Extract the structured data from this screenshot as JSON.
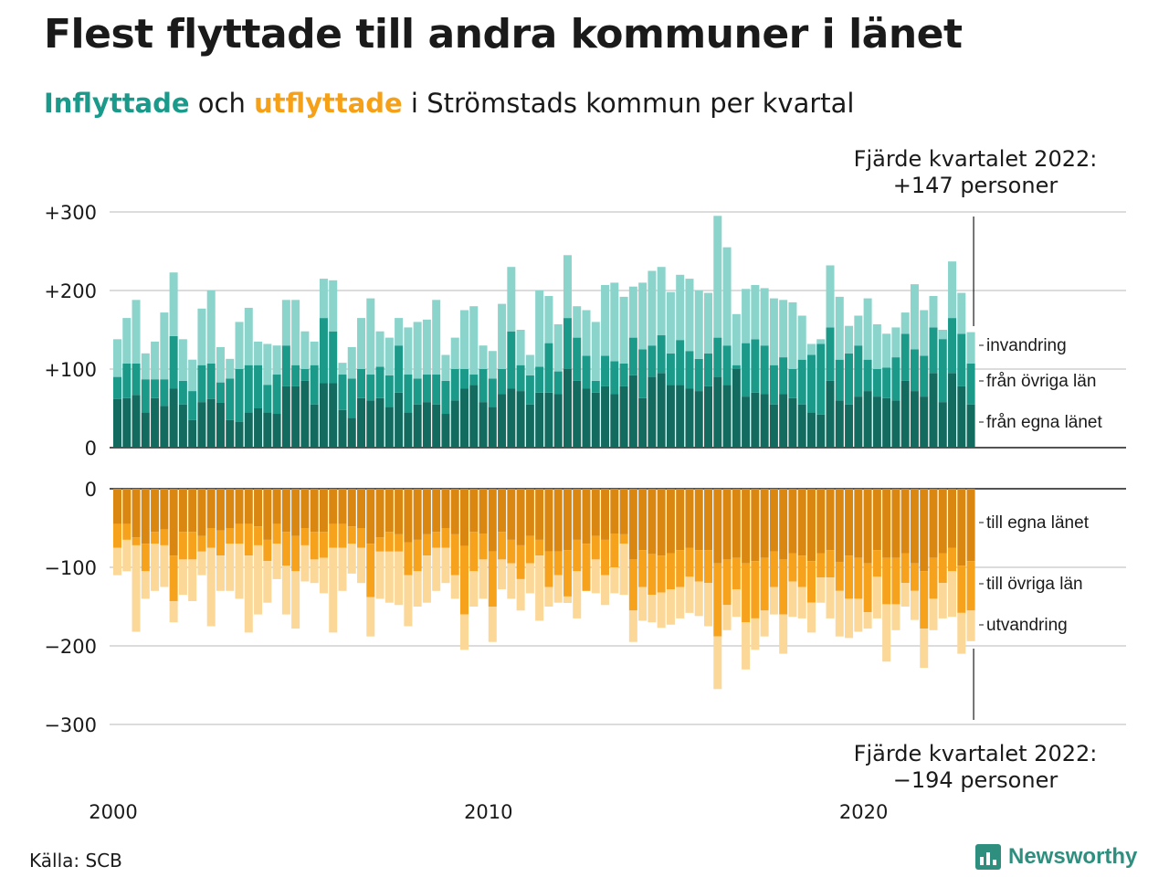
{
  "title": "Flest flyttade till andra kommuner i länet",
  "subtitle": {
    "part1": "Inflyttade",
    "part2": " och ",
    "part3": "utflyttade",
    "part4": " i Strömstads kommun per kvartal"
  },
  "annotation_top": {
    "line1": "Fjärde kvartalet 2022:",
    "line2": "+147 personer"
  },
  "annotation_bottom": {
    "line1": "Fjärde kvartalet 2022:",
    "line2": "−194 personer"
  },
  "source": "Källa: SCB",
  "logo_text": "Newsworthy",
  "colors": {
    "in_eget": "#136b60",
    "in_ovriga": "#1b9a8a",
    "in_invandring": "#8bd4cc",
    "ut_eget": "#d98711",
    "ut_ovriga": "#f6a21c",
    "ut_utvandring": "#fbd798"
  },
  "chart_data": {
    "type": "bar",
    "stacked": true,
    "x_start": "2000 Q1",
    "x_end": "2022 Q4",
    "x_ticks": [
      "2000",
      "2010",
      "2020"
    ],
    "y_ticks_top": [
      "+300",
      "+200",
      "+100",
      "0"
    ],
    "y_ticks_bottom": [
      "0",
      "−100",
      "−200",
      "−300"
    ],
    "ylim_top": [
      0,
      300
    ],
    "ylim_bottom": [
      -300,
      0
    ],
    "grid": true,
    "inflyttade": {
      "series_names": [
        "från egna länet",
        "från övriga län",
        "invandring"
      ],
      "totals": [
        138,
        165,
        188,
        120,
        135,
        172,
        223,
        138,
        112,
        177,
        200,
        128,
        113,
        160,
        178,
        135,
        132,
        130,
        188,
        188,
        148,
        135,
        215,
        213,
        108,
        128,
        165,
        190,
        148,
        140,
        165,
        153,
        160,
        163,
        188,
        118,
        140,
        175,
        180,
        130,
        123,
        183,
        230,
        150,
        118,
        200,
        193,
        157,
        245,
        180,
        175,
        160,
        207,
        210,
        192,
        205,
        210,
        225,
        230,
        198,
        220,
        215,
        200,
        197,
        295,
        255,
        170,
        202,
        207,
        203,
        190,
        188,
        185,
        168,
        132,
        138,
        232,
        192,
        155,
        168,
        190,
        157,
        145,
        153,
        172,
        208,
        175,
        193,
        138,
        237,
        197,
        147
      ],
      "totals_eget_ovriga": [
        90,
        107,
        107,
        87,
        87,
        87,
        142,
        85,
        72,
        105,
        107,
        83,
        88,
        100,
        105,
        105,
        80,
        93,
        130,
        105,
        100,
        105,
        165,
        148,
        93,
        88,
        100,
        93,
        103,
        92,
        130,
        93,
        88,
        93,
        93,
        85,
        100,
        100,
        93,
        100,
        88,
        100,
        148,
        105,
        92,
        103,
        133,
        97,
        165,
        140,
        117,
        85,
        117,
        110,
        107,
        140,
        125,
        130,
        143,
        120,
        137,
        123,
        113,
        120,
        140,
        130,
        105,
        133,
        138,
        130,
        105,
        115,
        100,
        112,
        118,
        132,
        153,
        112,
        120,
        130,
        112,
        100,
        102,
        115,
        145,
        125,
        117,
        153,
        150,
        165,
        145,
        107
      ],
      "eget": [
        62,
        63,
        67,
        45,
        63,
        53,
        75,
        55,
        35,
        58,
        62,
        57,
        35,
        33,
        45,
        50,
        45,
        43,
        78,
        78,
        85,
        55,
        82,
        82,
        48,
        38,
        63,
        60,
        63,
        52,
        70,
        45,
        55,
        58,
        55,
        43,
        60,
        75,
        80,
        58,
        52,
        68,
        75,
        72,
        55,
        70,
        70,
        68,
        100,
        85,
        75,
        70,
        78,
        68,
        78,
        92,
        63,
        90,
        95,
        80,
        80,
        75,
        72,
        78,
        90,
        80,
        100,
        65,
        70,
        68,
        55,
        68,
        63,
        55,
        45,
        42,
        85,
        60,
        55,
        65,
        72,
        65,
        63,
        60,
        85,
        72,
        65,
        95,
        58,
        95,
        78,
        55
      ]
    },
    "utflyttade": {
      "series_names": [
        "till egna länet",
        "till övriga län",
        "utvandring"
      ],
      "totals": [
        110,
        105,
        182,
        140,
        130,
        125,
        170,
        135,
        143,
        110,
        175,
        130,
        130,
        140,
        183,
        160,
        145,
        115,
        160,
        178,
        118,
        120,
        133,
        183,
        130,
        108,
        120,
        188,
        140,
        145,
        148,
        175,
        150,
        145,
        130,
        120,
        140,
        205,
        150,
        140,
        195,
        128,
        140,
        155,
        133,
        168,
        150,
        145,
        137,
        165,
        130,
        133,
        148,
        133,
        135,
        195,
        168,
        170,
        177,
        173,
        165,
        158,
        162,
        175,
        255,
        180,
        163,
        230,
        205,
        188,
        160,
        210,
        163,
        165,
        183,
        145,
        165,
        188,
        190,
        182,
        178,
        165,
        220,
        180,
        150,
        167,
        228,
        180,
        165,
        163,
        210,
        194
      ],
      "totals_eget_ovriga": [
        75,
        65,
        72,
        105,
        70,
        72,
        143,
        90,
        90,
        80,
        75,
        85,
        70,
        70,
        85,
        72,
        92,
        70,
        98,
        105,
        72,
        90,
        88,
        75,
        75,
        70,
        75,
        138,
        80,
        80,
        80,
        110,
        105,
        85,
        75,
        75,
        110,
        160,
        105,
        90,
        150,
        90,
        95,
        115,
        95,
        85,
        125,
        110,
        145,
        105,
        130,
        90,
        110,
        100,
        70,
        155,
        125,
        135,
        132,
        128,
        125,
        112,
        118,
        120,
        188,
        148,
        128,
        170,
        165,
        155,
        125,
        160,
        118,
        125,
        145,
        113,
        113,
        130,
        140,
        140,
        157,
        112,
        147,
        147,
        120,
        130,
        178,
        140,
        120,
        105,
        158,
        155
      ],
      "eget": [
        45,
        45,
        62,
        70,
        55,
        52,
        85,
        55,
        55,
        60,
        50,
        53,
        50,
        45,
        45,
        48,
        65,
        45,
        55,
        60,
        50,
        55,
        55,
        45,
        45,
        48,
        50,
        70,
        62,
        55,
        58,
        68,
        65,
        58,
        55,
        50,
        58,
        73,
        55,
        57,
        80,
        55,
        65,
        72,
        60,
        65,
        80,
        80,
        78,
        65,
        70,
        60,
        65,
        57,
        58,
        90,
        78,
        83,
        85,
        82,
        78,
        75,
        78,
        78,
        95,
        90,
        88,
        95,
        92,
        88,
        80,
        90,
        82,
        85,
        92,
        82,
        78,
        93,
        85,
        88,
        95,
        78,
        88,
        88,
        82,
        95,
        105,
        88,
        82,
        75,
        98,
        92
      ]
    }
  }
}
